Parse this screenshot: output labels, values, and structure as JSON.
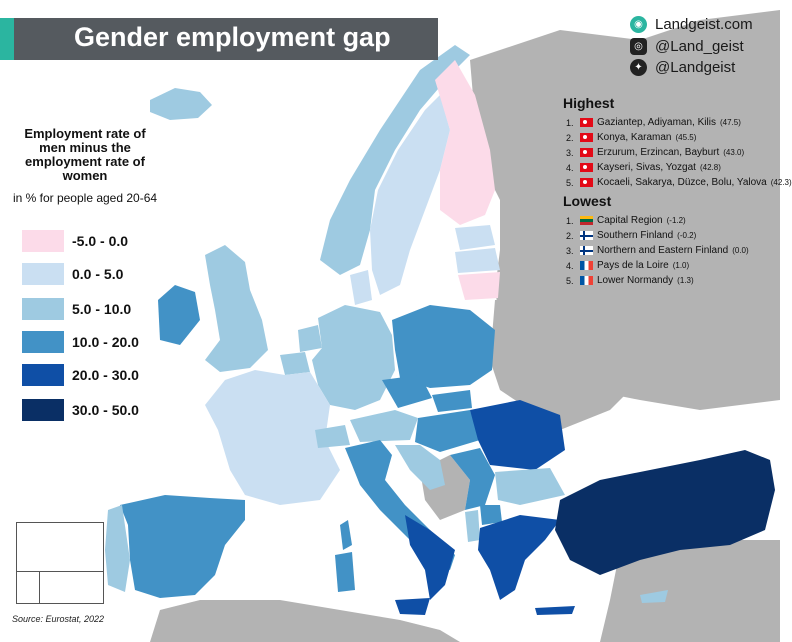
{
  "title": "Gender employment gap",
  "brand": {
    "website": "Landgeist.com",
    "instagram": "@Land_geist",
    "twitter": "@Landgeist",
    "website_icon": "globe-icon",
    "instagram_icon": "instagram-icon",
    "twitter_icon": "twitter-icon"
  },
  "legend": {
    "title": "Employment rate of men minus the employment rate of women",
    "subtitle": "in % for people aged 20-64",
    "bins": [
      {
        "label": "-5.0 -  0.0",
        "color": "#fcdbe9"
      },
      {
        "label": "0.0  -  5.0",
        "color": "#cadff2"
      },
      {
        "label": "5.0  - 10.0",
        "color": "#9ecae1"
      },
      {
        "label": "10.0 - 20.0",
        "color": "#4292c6"
      },
      {
        "label": "20.0 - 30.0",
        "color": "#0f4fa6"
      },
      {
        "label": "30.0 - 50.0",
        "color": "#0a2f65"
      }
    ],
    "no_data_color": "#b3b3b3"
  },
  "highest": {
    "heading": "Highest",
    "items": [
      {
        "rank": "1.",
        "region": "Gaziantep, Adiyaman, Kilis",
        "value": "(47.5)",
        "flag": "turkey"
      },
      {
        "rank": "2.",
        "region": "Konya, Karaman",
        "value": "(45.5)",
        "flag": "turkey"
      },
      {
        "rank": "3.",
        "region": "Erzurum, Erzincan, Bayburt",
        "value": "(43.0)",
        "flag": "turkey"
      },
      {
        "rank": "4.",
        "region": "Kayseri, Sivas, Yozgat",
        "value": "(42.8)",
        "flag": "turkey"
      },
      {
        "rank": "5.",
        "region": "Kocaeli, Sakarya, Düzce, Bolu, Yalova",
        "value": "(42.3)",
        "flag": "turkey"
      }
    ]
  },
  "lowest": {
    "heading": "Lowest",
    "items": [
      {
        "rank": "1.",
        "region": "Capital Region",
        "value": "(-1.2)",
        "flag": "lithuania"
      },
      {
        "rank": "2.",
        "region": "Southern Finland",
        "value": "(-0.2)",
        "flag": "finland"
      },
      {
        "rank": "3.",
        "region": "Northern and Eastern Finland",
        "value": "(0.0)",
        "flag": "finland"
      },
      {
        "rank": "4.",
        "region": "Pays de la Loire",
        "value": "(1.0)",
        "flag": "france"
      },
      {
        "rank": "5.",
        "region": "Lower Normandy",
        "value": "(1.3)",
        "flag": "france"
      }
    ]
  },
  "source": "Source: Eurostat, 2022"
}
